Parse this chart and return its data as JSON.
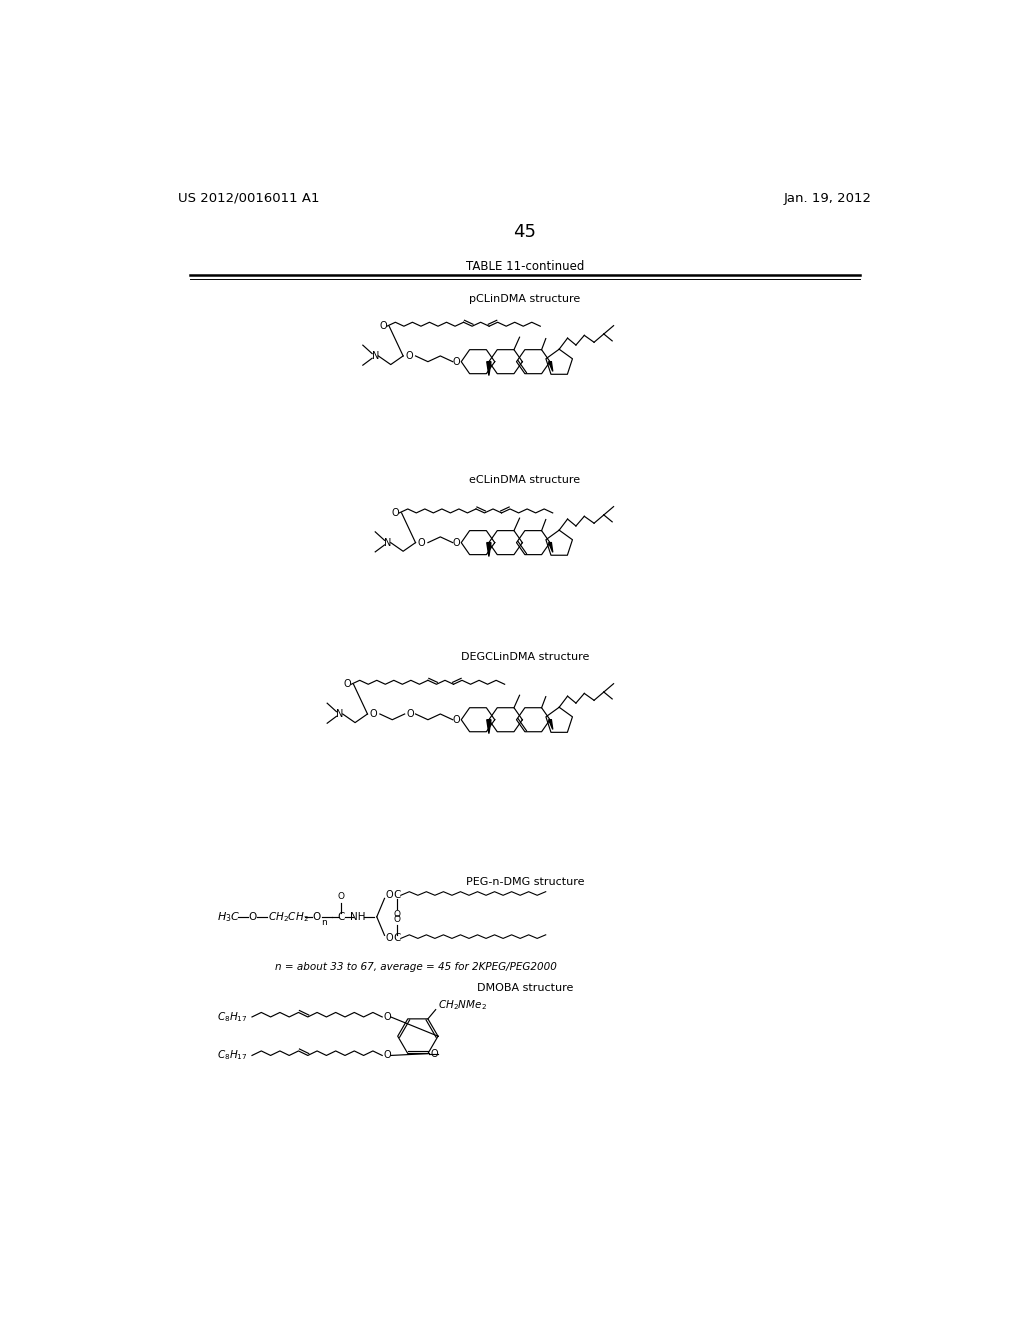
{
  "background_color": "#ffffff",
  "text_color": "#000000",
  "header_left": "US 2012/0016011 A1",
  "header_right": "Jan. 19, 2012",
  "page_number": "45",
  "table_title": "TABLE 11-continued",
  "label_pcl": "pCLinDMA structure",
  "label_ecl": "eCLinDMA structure",
  "label_deg": "DEGCLinDMA structure",
  "label_peg": "PEG-n-DMG structure",
  "label_dmo": "DMOBA structure",
  "peg_annotation": "n = about 33 to 67, average = 45 for 2KPEG/PEG2000"
}
